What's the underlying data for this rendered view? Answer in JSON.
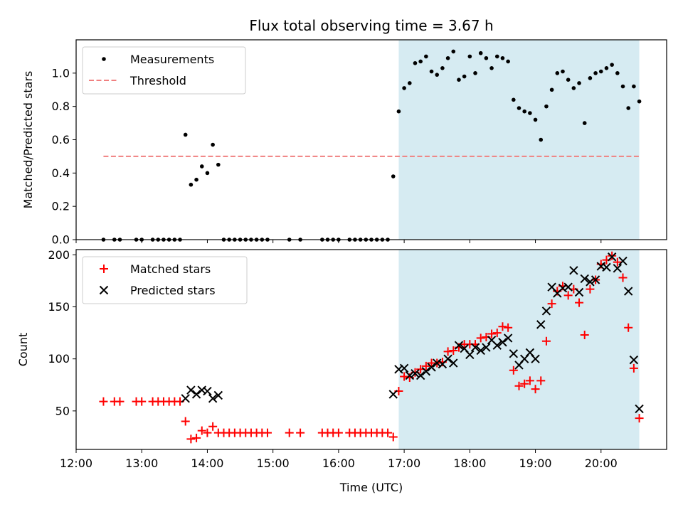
{
  "title": "Flux total observing time = 3.67 h",
  "shaded_span": {
    "start": "16:55",
    "end": "20:35",
    "color": "#add8e6"
  },
  "chart_data": [
    {
      "type": "scatter",
      "ylabel": "Matched/Predicted stars",
      "xlabel": "",
      "xlim": [
        "12:00",
        "21:00"
      ],
      "ylim": [
        0,
        1.2
      ],
      "yticks": [
        "0.0",
        "0.2",
        "0.4",
        "0.6",
        "0.8",
        "1.0"
      ],
      "grid": false,
      "legend_position": "top-left",
      "threshold": {
        "name": "Threshold",
        "y": 0.5,
        "x": [
          "12:25",
          "20:35"
        ],
        "color": "#f08080",
        "style": "dashed"
      },
      "series": [
        {
          "name": "Measurements",
          "color": "#000000",
          "marker": "dot",
          "points": [
            [
              "12:25",
              0
            ],
            [
              "12:35",
              0
            ],
            [
              "12:40",
              0
            ],
            [
              "12:55",
              0
            ],
            [
              "13:00",
              0
            ],
            [
              "13:10",
              0
            ],
            [
              "13:15",
              0
            ],
            [
              "13:20",
              0
            ],
            [
              "13:25",
              0
            ],
            [
              "13:30",
              0
            ],
            [
              "13:35",
              0
            ],
            [
              "13:40",
              0.63
            ],
            [
              "13:45",
              0.33
            ],
            [
              "13:50",
              0.36
            ],
            [
              "13:55",
              0.44
            ],
            [
              "14:00",
              0.4
            ],
            [
              "14:05",
              0.57
            ],
            [
              "14:10",
              0.45
            ],
            [
              "14:15",
              0
            ],
            [
              "14:20",
              0
            ],
            [
              "14:25",
              0
            ],
            [
              "14:30",
              0
            ],
            [
              "14:35",
              0
            ],
            [
              "14:40",
              0
            ],
            [
              "14:45",
              0
            ],
            [
              "14:50",
              0
            ],
            [
              "14:55",
              0
            ],
            [
              "15:15",
              0
            ],
            [
              "15:25",
              0
            ],
            [
              "15:45",
              0
            ],
            [
              "15:50",
              0
            ],
            [
              "15:55",
              0
            ],
            [
              "16:00",
              0
            ],
            [
              "16:10",
              0
            ],
            [
              "16:15",
              0
            ],
            [
              "16:20",
              0
            ],
            [
              "16:25",
              0
            ],
            [
              "16:30",
              0
            ],
            [
              "16:35",
              0
            ],
            [
              "16:40",
              0
            ],
            [
              "16:45",
              0
            ],
            [
              "16:50",
              0.38
            ],
            [
              "16:55",
              0.77
            ],
            [
              "17:00",
              0.91
            ],
            [
              "17:05",
              0.94
            ],
            [
              "17:10",
              1.06
            ],
            [
              "17:15",
              1.07
            ],
            [
              "17:20",
              1.1
            ],
            [
              "17:25",
              1.01
            ],
            [
              "17:30",
              0.99
            ],
            [
              "17:35",
              1.03
            ],
            [
              "17:40",
              1.09
            ],
            [
              "17:45",
              1.13
            ],
            [
              "17:50",
              0.96
            ],
            [
              "17:55",
              0.98
            ],
            [
              "18:00",
              1.1
            ],
            [
              "18:05",
              1.0
            ],
            [
              "18:10",
              1.12
            ],
            [
              "18:15",
              1.09
            ],
            [
              "18:20",
              1.03
            ],
            [
              "18:25",
              1.1
            ],
            [
              "18:30",
              1.09
            ],
            [
              "18:35",
              1.07
            ],
            [
              "18:40",
              0.84
            ],
            [
              "18:45",
              0.79
            ],
            [
              "18:50",
              0.77
            ],
            [
              "18:55",
              0.76
            ],
            [
              "19:00",
              0.72
            ],
            [
              "19:05",
              0.6
            ],
            [
              "19:10",
              0.8
            ],
            [
              "19:15",
              0.9
            ],
            [
              "19:20",
              1.0
            ],
            [
              "19:25",
              1.01
            ],
            [
              "19:30",
              0.96
            ],
            [
              "19:35",
              0.91
            ],
            [
              "19:40",
              0.94
            ],
            [
              "19:45",
              0.7
            ],
            [
              "19:50",
              0.97
            ],
            [
              "19:55",
              1.0
            ],
            [
              "20:00",
              1.01
            ],
            [
              "20:05",
              1.03
            ],
            [
              "20:10",
              1.05
            ],
            [
              "20:15",
              1.0
            ],
            [
              "20:20",
              0.92
            ],
            [
              "20:25",
              0.79
            ],
            [
              "20:30",
              0.92
            ],
            [
              "20:35",
              0.83
            ]
          ]
        }
      ]
    },
    {
      "type": "scatter",
      "ylabel": "Count",
      "xlabel": "Time (UTC)",
      "xlim": [
        "12:00",
        "21:00"
      ],
      "ylim": [
        13,
        205
      ],
      "xticks": [
        "12:00",
        "13:00",
        "14:00",
        "15:00",
        "16:00",
        "17:00",
        "18:00",
        "19:00",
        "20:00"
      ],
      "yticks": [
        "50",
        "100",
        "150",
        "200"
      ],
      "grid": false,
      "legend_position": "top-left",
      "series": [
        {
          "name": "Matched stars",
          "color": "#ff0000",
          "marker": "plus",
          "points": [
            [
              "12:25",
              59
            ],
            [
              "12:35",
              59
            ],
            [
              "12:40",
              59
            ],
            [
              "12:55",
              59
            ],
            [
              "13:00",
              59
            ],
            [
              "13:10",
              59
            ],
            [
              "13:15",
              59
            ],
            [
              "13:20",
              59
            ],
            [
              "13:25",
              59
            ],
            [
              "13:30",
              59
            ],
            [
              "13:35",
              59
            ],
            [
              "13:40",
              40
            ],
            [
              "13:45",
              23
            ],
            [
              "13:50",
              24
            ],
            [
              "13:55",
              31
            ],
            [
              "14:00",
              29
            ],
            [
              "14:05",
              35
            ],
            [
              "14:10",
              29
            ],
            [
              "14:15",
              29
            ],
            [
              "14:20",
              29
            ],
            [
              "14:25",
              29
            ],
            [
              "14:30",
              29
            ],
            [
              "14:35",
              29
            ],
            [
              "14:40",
              29
            ],
            [
              "14:45",
              29
            ],
            [
              "14:50",
              29
            ],
            [
              "14:55",
              29
            ],
            [
              "15:15",
              29
            ],
            [
              "15:25",
              29
            ],
            [
              "15:45",
              29
            ],
            [
              "15:50",
              29
            ],
            [
              "15:55",
              29
            ],
            [
              "16:00",
              29
            ],
            [
              "16:10",
              29
            ],
            [
              "16:15",
              29
            ],
            [
              "16:20",
              29
            ],
            [
              "16:25",
              29
            ],
            [
              "16:30",
              29
            ],
            [
              "16:35",
              29
            ],
            [
              "16:40",
              29
            ],
            [
              "16:45",
              29
            ],
            [
              "16:50",
              25
            ],
            [
              "16:55",
              69
            ],
            [
              "17:00",
              83
            ],
            [
              "17:05",
              82
            ],
            [
              "17:10",
              87
            ],
            [
              "17:15",
              90
            ],
            [
              "17:20",
              93
            ],
            [
              "17:25",
              96
            ],
            [
              "17:30",
              96
            ],
            [
              "17:35",
              97
            ],
            [
              "17:40",
              107
            ],
            [
              "17:45",
              108
            ],
            [
              "17:50",
              111
            ],
            [
              "17:55",
              114
            ],
            [
              "18:00",
              114
            ],
            [
              "18:05",
              114
            ],
            [
              "18:10",
              120
            ],
            [
              "18:15",
              121
            ],
            [
              "18:20",
              124
            ],
            [
              "18:25",
              125
            ],
            [
              "18:30",
              131
            ],
            [
              "18:35",
              130
            ],
            [
              "18:40",
              89
            ],
            [
              "18:45",
              74
            ],
            [
              "18:50",
              76
            ],
            [
              "18:55",
              79
            ],
            [
              "19:00",
              71
            ],
            [
              "19:05",
              79
            ],
            [
              "19:10",
              117
            ],
            [
              "19:15",
              153
            ],
            [
              "19:20",
              165
            ],
            [
              "19:25",
              170
            ],
            [
              "19:30",
              161
            ],
            [
              "19:35",
              167
            ],
            [
              "19:40",
              154
            ],
            [
              "19:45",
              123
            ],
            [
              "19:50",
              167
            ],
            [
              "19:55",
              176
            ],
            [
              "20:00",
              191
            ],
            [
              "20:05",
              195
            ],
            [
              "20:10",
              199
            ],
            [
              "20:15",
              193
            ],
            [
              "20:20",
              178
            ],
            [
              "20:25",
              130
            ],
            [
              "20:30",
              91
            ],
            [
              "20:35",
              43
            ]
          ]
        },
        {
          "name": "Predicted stars",
          "color": "#000000",
          "marker": "x",
          "points": [
            [
              "13:40",
              62
            ],
            [
              "13:45",
              70
            ],
            [
              "13:50",
              66
            ],
            [
              "13:55",
              70
            ],
            [
              "14:00",
              69
            ],
            [
              "14:05",
              62
            ],
            [
              "14:10",
              65
            ],
            [
              "16:50",
              66
            ],
            [
              "16:55",
              90
            ],
            [
              "17:00",
              91
            ],
            [
              "17:05",
              84
            ],
            [
              "17:10",
              86
            ],
            [
              "17:15",
              84
            ],
            [
              "17:20",
              88
            ],
            [
              "17:25",
              92
            ],
            [
              "17:30",
              96
            ],
            [
              "17:35",
              95
            ],
            [
              "17:40",
              100
            ],
            [
              "17:45",
              96
            ],
            [
              "17:50",
              113
            ],
            [
              "17:55",
              110
            ],
            [
              "18:00",
              104
            ],
            [
              "18:05",
              111
            ],
            [
              "18:10",
              108
            ],
            [
              "18:15",
              111
            ],
            [
              "18:20",
              118
            ],
            [
              "18:25",
              113
            ],
            [
              "18:30",
              116
            ],
            [
              "18:35",
              120
            ],
            [
              "18:40",
              105
            ],
            [
              "18:45",
              94
            ],
            [
              "18:50",
              100
            ],
            [
              "18:55",
              106
            ],
            [
              "19:00",
              100
            ],
            [
              "19:05",
              133
            ],
            [
              "19:10",
              146
            ],
            [
              "19:15",
              169
            ],
            [
              "19:20",
              163
            ],
            [
              "19:25",
              168
            ],
            [
              "19:30",
              169
            ],
            [
              "19:35",
              185
            ],
            [
              "19:40",
              164
            ],
            [
              "19:45",
              177
            ],
            [
              "19:50",
              174
            ],
            [
              "19:55",
              176
            ],
            [
              "20:00",
              189
            ],
            [
              "20:05",
              188
            ],
            [
              "20:10",
              198
            ],
            [
              "20:15",
              187
            ],
            [
              "20:20",
              194
            ],
            [
              "20:25",
              165
            ],
            [
              "20:30",
              99
            ],
            [
              "20:35",
              52
            ]
          ]
        }
      ]
    }
  ]
}
